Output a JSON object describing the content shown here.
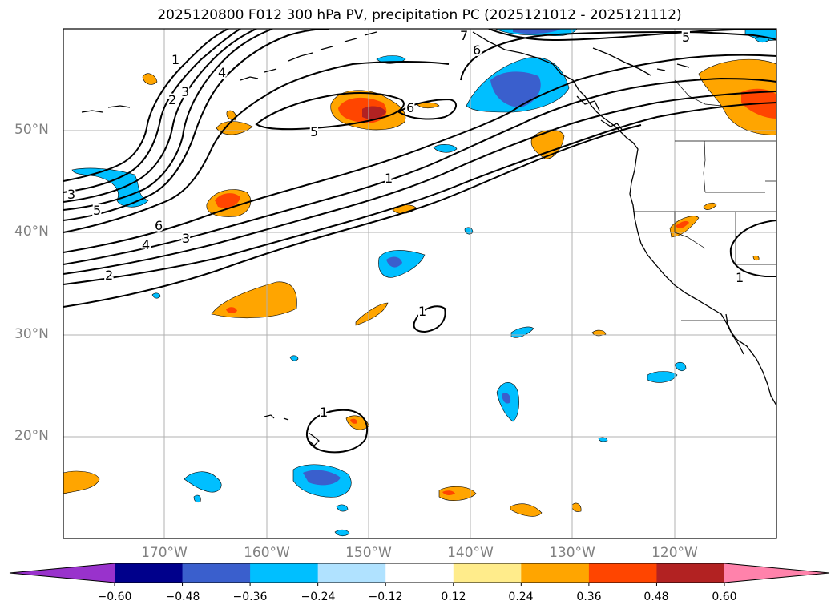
{
  "title": "2025120800 F012 300 hPa PV, precipitation PC (2025121012 - 2025121112)",
  "lat_labels": [
    "50°N",
    "40°N",
    "30°N",
    "20°N"
  ],
  "lon_labels": [
    "170°W",
    "160°W",
    "150°W",
    "140°W",
    "130°W",
    "120°W"
  ],
  "contour_labels": [
    "1",
    "2",
    "3",
    "4",
    "5",
    "6",
    "7"
  ],
  "colorbar": {
    "ticks": [
      "−0.60",
      "−0.48",
      "−0.36",
      "−0.24",
      "−0.12",
      "0.12",
      "0.24",
      "0.36",
      "0.48",
      "0.60"
    ],
    "colors": [
      "#9932cc",
      "#00008b",
      "#3a5fcd",
      "#00bfff",
      "#b0e2ff",
      "#ffffff",
      "#ffec8b",
      "#ffa500",
      "#ff4500",
      "#b22222",
      "#ff82ab"
    ]
  }
}
